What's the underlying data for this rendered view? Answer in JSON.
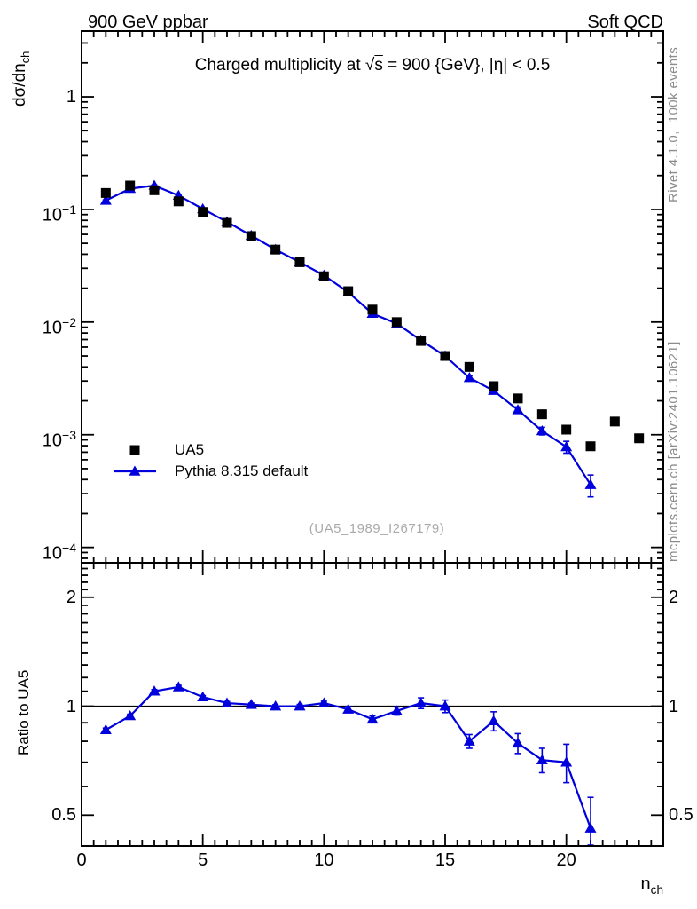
{
  "header": {
    "left": "900 GeV ppbar",
    "right": "Soft QCD"
  },
  "plot": {
    "title": "Charged multiplicity at √s = 900 {GeV}, |η| < 0.5",
    "watermark": "(UA5_1989_I267179)",
    "side_notes": {
      "right_top": "Rivet 4.1.0,  100k events",
      "right_bottom": "mcplots.cern.ch [arXiv:2401.10621]"
    },
    "colors": {
      "data": "#000000",
      "mc": "#0000dd",
      "ref_line": "#000000",
      "note": "#8c8c8c",
      "watermark": "#aaaaaa"
    }
  },
  "legend": [
    {
      "label": "UA5",
      "marker": "square",
      "color": "#000000"
    },
    {
      "label": "Pythia 8.315 default",
      "marker": "triangle-line",
      "color": "#0000dd"
    }
  ],
  "axes": {
    "x": {
      "label_main": "n",
      "label_sub": "ch",
      "range": [
        0,
        24
      ],
      "major_ticks": [
        0,
        5,
        10,
        15,
        20
      ],
      "minor_step": 0.5
    },
    "y_main": {
      "label_main": "dσ/dn",
      "label_sub": "ch",
      "log": true,
      "range": [
        7.3e-05,
        3.83
      ],
      "tick_labels": [
        {
          "v": 1,
          "text": "1"
        },
        {
          "v": 0.1,
          "base": "10",
          "exp": "−1"
        },
        {
          "v": 0.01,
          "base": "10",
          "exp": "−2"
        },
        {
          "v": 0.001,
          "base": "10",
          "exp": "−3"
        },
        {
          "v": 0.0001,
          "base": "10",
          "exp": "−4"
        }
      ]
    },
    "y_ratio": {
      "label": "Ratio to UA5",
      "log": true,
      "range": [
        0.411,
        2.49
      ],
      "ref": 1,
      "tick_labels": [
        {
          "v": 2,
          "text": "2"
        },
        {
          "v": 1,
          "text": "1"
        },
        {
          "v": 0.5,
          "text": "0.5"
        }
      ]
    }
  },
  "chart_data": [
    {
      "type": "scatter",
      "panel": "main",
      "title": "Charged multiplicity at √s = 900 {GeV}, |η| < 0.5",
      "xlabel": "n_ch",
      "ylabel": "dσ/dn_ch",
      "ylog": true,
      "xlim": [
        0,
        24
      ],
      "ylim": [
        7.3e-05,
        3.83
      ],
      "series": [
        {
          "name": "UA5",
          "marker": "square",
          "color": "#000000",
          "line": false,
          "x": [
            1,
            2,
            3,
            4,
            5,
            6,
            7,
            8,
            9,
            10,
            11,
            12,
            13,
            14,
            15,
            16,
            17,
            18,
            19,
            20,
            21,
            22,
            23
          ],
          "y": [
            0.14,
            0.163,
            0.148,
            0.118,
            0.095,
            0.076,
            0.058,
            0.044,
            0.034,
            0.0255,
            0.0188,
            0.0129,
            0.01,
            0.0068,
            0.005,
            0.004,
            0.0027,
            0.0021,
            0.00152,
            0.00111,
            0.00079,
            0.00131,
            0.00093
          ]
        },
        {
          "name": "Pythia 8.315 default",
          "marker": "triangle",
          "color": "#0000dd",
          "line": true,
          "x": [
            1,
            2,
            3,
            4,
            5,
            6,
            7,
            8,
            9,
            10,
            11,
            12,
            13,
            14,
            15,
            16,
            17,
            18,
            19,
            20,
            21
          ],
          "y": [
            0.12,
            0.153,
            0.163,
            0.133,
            0.101,
            0.0775,
            0.0586,
            0.044,
            0.034,
            0.026,
            0.0184,
            0.0119,
            0.0097,
            0.0069,
            0.005,
            0.0032,
            0.00246,
            0.00166,
            0.00108,
            0.00078,
            0.00036
          ],
          "yerr": [
            0.0014,
            0.0016,
            0.0018,
            0.0014,
            0.00095,
            0.00076,
            0.00058,
            0.00044,
            0.00037,
            0.00031,
            0.00034,
            0.00026,
            0.00025,
            0.00024,
            0.0002,
            0.00014,
            0.00015,
            0.000105,
            8.4e-05,
            9.4e-05,
            7.9e-05
          ]
        }
      ]
    },
    {
      "type": "line",
      "panel": "ratio",
      "ylabel": "Ratio to UA5",
      "ylog": true,
      "xlim": [
        0,
        24
      ],
      "ylim": [
        0.411,
        2.49
      ],
      "ref_line": 1,
      "series": [
        {
          "name": "Pythia 8.315 default / UA5",
          "marker": "triangle",
          "color": "#0000dd",
          "line": true,
          "x": [
            1,
            2,
            3,
            4,
            5,
            6,
            7,
            8,
            9,
            10,
            11,
            12,
            13,
            14,
            15,
            16,
            17,
            18,
            19,
            20,
            21
          ],
          "y": [
            0.86,
            0.94,
            1.1,
            1.13,
            1.06,
            1.02,
            1.01,
            1.0,
            1.0,
            1.02,
            0.98,
            0.92,
            0.97,
            1.02,
            1.0,
            0.8,
            0.91,
            0.79,
            0.71,
            0.7,
            0.46
          ],
          "yerr": [
            0.01,
            0.01,
            0.012,
            0.012,
            0.01,
            0.01,
            0.01,
            0.01,
            0.011,
            0.012,
            0.018,
            0.02,
            0.025,
            0.035,
            0.04,
            0.035,
            0.055,
            0.05,
            0.055,
            0.085,
            0.1
          ]
        }
      ]
    }
  ]
}
